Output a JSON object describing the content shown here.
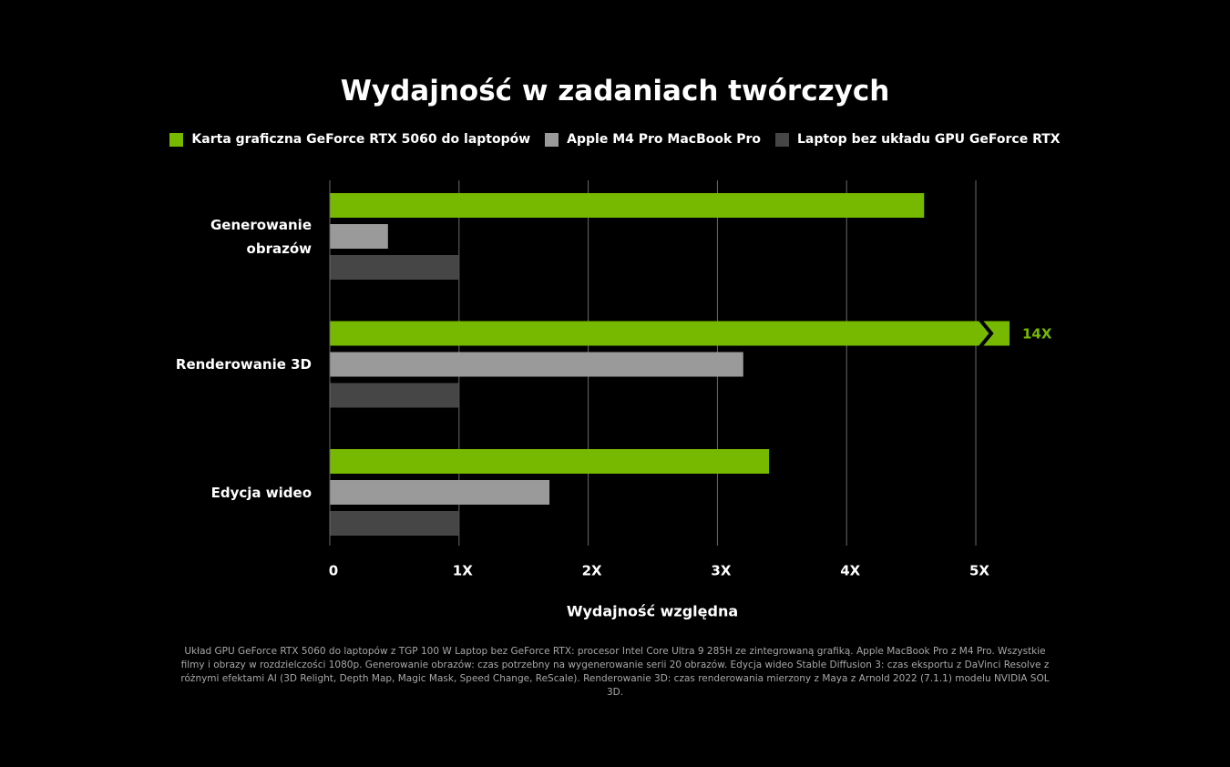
{
  "chart_data": {
    "type": "barh",
    "title": "Wydajność w zadaniach twórczych",
    "categories": [
      "Generowanie obrazów",
      "Renderowanie 3D",
      "Edycja wideo"
    ],
    "series": [
      {
        "name": "Karta graficzna GeForce RTX 5060 do laptopów",
        "color": "#76b900",
        "values": [
          4.6,
          14,
          3.4
        ],
        "value_labels": [
          null,
          "14X",
          null
        ]
      },
      {
        "name": "Apple M4 Pro MacBook Pro",
        "color": "#9a9a9a",
        "values": [
          0.45,
          3.2,
          1.7
        ]
      },
      {
        "name": "Laptop bez układu GPU GeForce RTX",
        "color": "#464646",
        "values": [
          1,
          1,
          1
        ]
      }
    ],
    "xlim": [
      0,
      5
    ],
    "xticks": [
      0,
      {
        "value": 1,
        "label": "1X"
      },
      {
        "value": 2,
        "label": "2X"
      },
      {
        "value": 3,
        "label": "3X"
      },
      {
        "value": 4,
        "label": "4X"
      },
      {
        "value": 5,
        "label": "5X"
      }
    ],
    "xlabel": "Wydajność względna",
    "grid": true,
    "legend": "top",
    "footnote": "Układ GPU GeForce RTX 5060 do laptopów z TGP 100 W Laptop bez GeForce RTX: procesor Intel Core Ultra 9 285H ze zintegrowaną grafiką. Apple MacBook Pro z M4 Pro. Wszystkie filmy i obrazy w rozdzielczości 1080p. Generowanie obrazów: czas potrzebny na wygenerowanie serii 20 obrazów. Edycja wideo Stable Diffusion 3: czas eksportu z DaVinci Resolve z różnymi efektami AI (3D Relight, Depth Map, Magic Mask, Speed Change, ReScale). Renderowanie 3D: czas renderowania mierzony z Maya z Arnold 2022 (7.1.1) modelu NVIDIA SOL 3D."
  }
}
